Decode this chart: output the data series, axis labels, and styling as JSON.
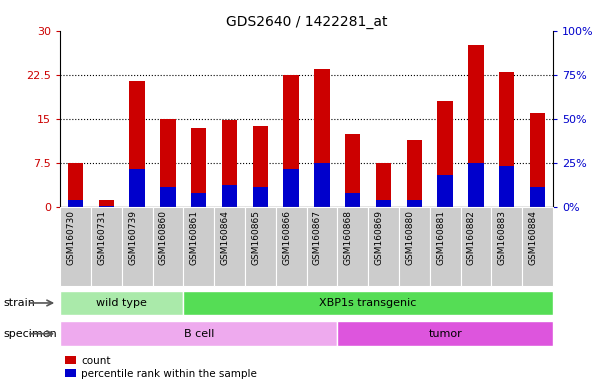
{
  "title": "GDS2640 / 1422281_at",
  "samples": [
    "GSM160730",
    "GSM160731",
    "GSM160739",
    "GSM160860",
    "GSM160861",
    "GSM160864",
    "GSM160865",
    "GSM160866",
    "GSM160867",
    "GSM160868",
    "GSM160869",
    "GSM160880",
    "GSM160881",
    "GSM160882",
    "GSM160883",
    "GSM160884"
  ],
  "count_values": [
    7.5,
    1.3,
    21.5,
    15.0,
    13.5,
    14.8,
    13.8,
    22.5,
    23.5,
    12.5,
    7.5,
    11.5,
    18.0,
    27.5,
    23.0,
    16.0
  ],
  "percentile_values": [
    1.2,
    0.3,
    6.5,
    3.5,
    2.5,
    3.8,
    3.5,
    6.5,
    7.5,
    2.5,
    1.2,
    1.3,
    5.5,
    7.5,
    7.0,
    3.5
  ],
  "bar_color": "#cc0000",
  "percentile_color": "#0000cc",
  "ylim_left": [
    0,
    30
  ],
  "ylim_right": [
    0,
    100
  ],
  "yticks_left": [
    0,
    7.5,
    15,
    22.5,
    30
  ],
  "yticks_right": [
    0,
    25,
    50,
    75,
    100
  ],
  "ytick_labels_left": [
    "0",
    "7.5",
    "15",
    "22.5",
    "30"
  ],
  "ytick_labels_right": [
    "0%",
    "25%",
    "50%",
    "75%",
    "100%"
  ],
  "strain_groups": [
    {
      "label": "wild type",
      "start": 0,
      "end": 4,
      "color": "#aaeaaa"
    },
    {
      "label": "XBP1s transgenic",
      "start": 4,
      "end": 16,
      "color": "#55dd55"
    }
  ],
  "specimen_groups": [
    {
      "label": "B cell",
      "start": 0,
      "end": 9,
      "color": "#eeaaee"
    },
    {
      "label": "tumor",
      "start": 9,
      "end": 16,
      "color": "#dd55dd"
    }
  ],
  "strain_label": "strain",
  "specimen_label": "specimen",
  "legend_count_label": "count",
  "legend_pct_label": "percentile rank within the sample",
  "bar_width": 0.5,
  "grid_ticks": [
    7.5,
    15,
    22.5
  ]
}
